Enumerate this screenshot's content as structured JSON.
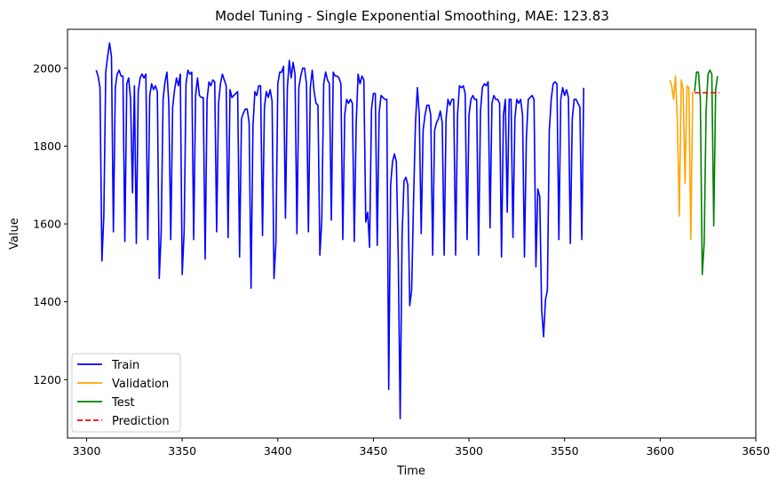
{
  "chart_data": {
    "type": "line",
    "title": "Model Tuning - Single Exponential Smoothing, MAE: 123.83",
    "xlabel": "Time",
    "ylabel": "Value",
    "xlim": [
      3290,
      3650
    ],
    "ylim": [
      1050,
      2100
    ],
    "xticks": [
      3300,
      3350,
      3400,
      3450,
      3500,
      3550,
      3600,
      3650
    ],
    "yticks": [
      1200,
      1400,
      1600,
      1800,
      2000
    ],
    "grid": false,
    "legend_position": "lower-left",
    "series": [
      {
        "name": "Train",
        "color": "#0000ff",
        "style": "solid",
        "x_start": 3305,
        "values": [
          1995,
          1980,
          1950,
          1505,
          1620,
          1990,
          2030,
          2065,
          2030,
          1580,
          1950,
          1985,
          1995,
          1980,
          1980,
          1555,
          1960,
          1975,
          1920,
          1680,
          1955,
          1550,
          1940,
          1975,
          1985,
          1975,
          1985,
          1560,
          1930,
          1960,
          1945,
          1955,
          1940,
          1460,
          1580,
          1920,
          1965,
          1990,
          1910,
          1560,
          1900,
          1945,
          1975,
          1955,
          1985,
          1470,
          1580,
          1960,
          1995,
          1985,
          1990,
          1560,
          1930,
          1975,
          1930,
          1925,
          1925,
          1510,
          1920,
          1965,
          1955,
          1970,
          1965,
          1580,
          1910,
          1960,
          1985,
          1970,
          1955,
          1565,
          1945,
          1925,
          1930,
          1935,
          1940,
          1515,
          1870,
          1885,
          1895,
          1895,
          1860,
          1435,
          1850,
          1940,
          1930,
          1955,
          1955,
          1570,
          1900,
          1940,
          1925,
          1945,
          1915,
          1460,
          1550,
          1960,
          1990,
          1990,
          2005,
          1615,
          1950,
          2020,
          1975,
          2015,
          1985,
          1575,
          1950,
          1980,
          2000,
          2000,
          1960,
          1580,
          1950,
          1995,
          1940,
          1910,
          1905,
          1520,
          1610,
          1960,
          1990,
          1970,
          1960,
          1610,
          1990,
          1980,
          1980,
          1975,
          1960,
          1560,
          1880,
          1920,
          1910,
          1920,
          1910,
          1555,
          1860,
          1985,
          1960,
          1980,
          1970,
          1605,
          1630,
          1540,
          1895,
          1935,
          1935,
          1545,
          1885,
          1930,
          1925,
          1920,
          1920,
          1175,
          1700,
          1760,
          1780,
          1760,
          1515,
          1100,
          1570,
          1710,
          1720,
          1700,
          1390,
          1430,
          1660,
          1860,
          1950,
          1880,
          1575,
          1840,
          1880,
          1905,
          1905,
          1880,
          1520,
          1840,
          1860,
          1870,
          1890,
          1860,
          1520,
          1870,
          1920,
          1905,
          1920,
          1920,
          1520,
          1880,
          1955,
          1950,
          1955,
          1935,
          1560,
          1880,
          1920,
          1930,
          1920,
          1920,
          1520,
          1890,
          1950,
          1960,
          1955,
          1965,
          1590,
          1910,
          1930,
          1920,
          1920,
          1910,
          1515,
          1880,
          1920,
          1630,
          1920,
          1920,
          1565,
          1870,
          1920,
          1910,
          1920,
          1880,
          1515,
          1820,
          1920,
          1925,
          1930,
          1920,
          1490,
          1690,
          1670,
          1380,
          1310,
          1405,
          1430,
          1840,
          1920,
          1960,
          1965,
          1960,
          1560,
          1920,
          1950,
          1930,
          1945,
          1925,
          1550,
          1870,
          1920,
          1920,
          1910,
          1900,
          1560,
          1950
        ]
      },
      {
        "name": "Validation",
        "color": "#ffa500",
        "style": "solid",
        "x_start": 3605,
        "values": [
          1970,
          1955,
          1920,
          1980,
          1860,
          1620,
          1970,
          1945,
          1705,
          1955,
          1950,
          1560,
          1940
        ]
      },
      {
        "name": "Test",
        "color": "#008000",
        "style": "solid",
        "x_start": 3618,
        "values": [
          1940,
          1990,
          1990,
          1920,
          1470,
          1550,
          1890,
          1985,
          1995,
          1985,
          1595,
          1945,
          1980
        ]
      },
      {
        "name": "Prediction",
        "color": "#ff0000",
        "style": "dashed",
        "x": [
          3618,
          3631
        ],
        "values": [
          1937,
          1937
        ]
      }
    ]
  }
}
